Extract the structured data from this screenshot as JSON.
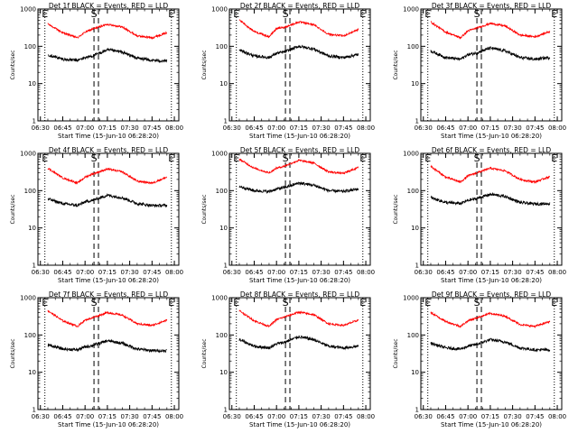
{
  "figure": {
    "xlabel": "Start Time (15-Jun-10 06:28:20)",
    "ylabel": "Counts/sec",
    "x_tick_labels": [
      "06:30",
      "06:45",
      "07:00",
      "07:15",
      "07:30",
      "07:45",
      "08:00"
    ],
    "y_tick_labels": [
      "1",
      "10",
      "100",
      "1000"
    ],
    "series_colors": {
      "events": "#000000",
      "lld": "#ff0000"
    }
  },
  "chart_data": [
    {
      "type": "line",
      "title": "Det 1f BLACK = Events, RED = LLD",
      "x_axis": "time",
      "xlim": [
        "06:28:20",
        "08:03:00"
      ],
      "ylim": [
        1,
        1000
      ],
      "y_scale": "log",
      "x": [
        "06:35",
        "06:45",
        "06:55",
        "07:00",
        "07:05",
        "07:15",
        "07:25",
        "07:35",
        "07:45",
        "07:55"
      ],
      "series": [
        {
          "values": [
            400,
            230,
            170,
            240,
            290,
            390,
            330,
            190,
            170,
            230
          ]
        },
        {
          "values": [
            60,
            45,
            42,
            50,
            55,
            80,
            70,
            48,
            42,
            40
          ]
        }
      ],
      "markers": [
        {
          "label": "E",
          "x": "06:33",
          "style": "dotted"
        },
        {
          "label": "S",
          "x": "07:06",
          "style": "dashed"
        },
        {
          "label": "",
          "x": "07:09",
          "style": "dashed"
        },
        {
          "label": "E",
          "x": "07:58",
          "style": "dotted"
        }
      ]
    },
    {
      "type": "line",
      "title": "Det 2f BLACK = Events, RED = LLD",
      "x_axis": "time",
      "xlim": [
        "06:28:20",
        "08:03:00"
      ],
      "ylim": [
        1,
        1000
      ],
      "y_scale": "log",
      "x": [
        "06:35",
        "06:45",
        "06:55",
        "07:00",
        "07:05",
        "07:15",
        "07:25",
        "07:35",
        "07:45",
        "07:55"
      ],
      "series": [
        {
          "values": [
            500,
            250,
            180,
            300,
            320,
            450,
            380,
            210,
            190,
            280
          ]
        },
        {
          "values": [
            80,
            55,
            50,
            65,
            70,
            100,
            85,
            55,
            50,
            60
          ]
        }
      ],
      "markers": [
        {
          "label": "E",
          "x": "06:33",
          "style": "dotted"
        },
        {
          "label": "S",
          "x": "07:06",
          "style": "dashed"
        },
        {
          "label": "",
          "x": "07:09",
          "style": "dashed"
        },
        {
          "label": "E",
          "x": "07:58",
          "style": "dotted"
        }
      ]
    },
    {
      "type": "line",
      "title": "Det 3f BLACK = Events, RED = LLD",
      "x_axis": "time",
      "xlim": [
        "06:28:20",
        "08:03:00"
      ],
      "ylim": [
        1,
        1000
      ],
      "y_scale": "log",
      "x": [
        "06:35",
        "06:45",
        "06:55",
        "07:00",
        "07:05",
        "07:15",
        "07:25",
        "07:35",
        "07:45",
        "07:55"
      ],
      "series": [
        {
          "values": [
            450,
            240,
            170,
            260,
            300,
            410,
            350,
            200,
            180,
            250
          ]
        },
        {
          "values": [
            75,
            50,
            45,
            60,
            65,
            90,
            75,
            50,
            45,
            50
          ]
        }
      ],
      "markers": [
        {
          "label": "E",
          "x": "06:33",
          "style": "dotted"
        },
        {
          "label": "S",
          "x": "07:06",
          "style": "dashed"
        },
        {
          "label": "",
          "x": "07:09",
          "style": "dashed"
        },
        {
          "label": "E",
          "x": "07:58",
          "style": "dotted"
        }
      ]
    },
    {
      "type": "line",
      "title": "Det 4f BLACK = Events, RED = LLD",
      "x_axis": "time",
      "xlim": [
        "06:28:20",
        "08:03:00"
      ],
      "ylim": [
        1,
        1000
      ],
      "y_scale": "log",
      "x": [
        "06:35",
        "06:45",
        "06:55",
        "07:00",
        "07:05",
        "07:15",
        "07:25",
        "07:35",
        "07:45",
        "07:55"
      ],
      "series": [
        {
          "values": [
            400,
            220,
            160,
            230,
            280,
            380,
            320,
            180,
            160,
            230
          ]
        },
        {
          "values": [
            60,
            45,
            40,
            50,
            55,
            75,
            65,
            45,
            40,
            40
          ]
        }
      ],
      "markers": [
        {
          "label": "E",
          "x": "06:33",
          "style": "dotted"
        },
        {
          "label": "S",
          "x": "07:06",
          "style": "dashed"
        },
        {
          "label": "",
          "x": "07:09",
          "style": "dashed"
        },
        {
          "label": "E",
          "x": "07:58",
          "style": "dotted"
        }
      ]
    },
    {
      "type": "line",
      "title": "Det 5f BLACK = Events, RED = LLD",
      "x_axis": "time",
      "xlim": [
        "06:28:20",
        "08:03:00"
      ],
      "ylim": [
        1,
        1000
      ],
      "y_scale": "log",
      "x": [
        "06:35",
        "06:45",
        "06:55",
        "07:00",
        "07:05",
        "07:15",
        "07:25",
        "07:35",
        "07:45",
        "07:55"
      ],
      "series": [
        {
          "values": [
            700,
            400,
            300,
            400,
            450,
            650,
            550,
            320,
            290,
            420
          ]
        },
        {
          "values": [
            130,
            100,
            95,
            110,
            120,
            160,
            140,
            100,
            95,
            110
          ]
        }
      ],
      "markers": [
        {
          "label": "E",
          "x": "06:33",
          "style": "dotted"
        },
        {
          "label": "S",
          "x": "07:06",
          "style": "dashed"
        },
        {
          "label": "",
          "x": "07:09",
          "style": "dashed"
        },
        {
          "label": "E",
          "x": "07:58",
          "style": "dotted"
        }
      ]
    },
    {
      "type": "line",
      "title": "Det 6f BLACK = Events, RED = LLD",
      "x_axis": "time",
      "xlim": [
        "06:28:20",
        "08:03:00"
      ],
      "ylim": [
        1,
        1000
      ],
      "y_scale": "log",
      "x": [
        "06:35",
        "06:45",
        "06:55",
        "07:00",
        "07:05",
        "07:15",
        "07:25",
        "07:35",
        "07:45",
        "07:55"
      ],
      "series": [
        {
          "values": [
            450,
            230,
            170,
            250,
            290,
            400,
            340,
            200,
            170,
            240
          ]
        },
        {
          "values": [
            65,
            48,
            45,
            55,
            60,
            80,
            70,
            48,
            44,
            45
          ]
        }
      ],
      "markers": [
        {
          "label": "E",
          "x": "06:33",
          "style": "dotted"
        },
        {
          "label": "S",
          "x": "07:06",
          "style": "dashed"
        },
        {
          "label": "",
          "x": "07:09",
          "style": "dashed"
        },
        {
          "label": "E",
          "x": "07:58",
          "style": "dotted"
        }
      ]
    },
    {
      "type": "line",
      "title": "Det 7f BLACK = Events, RED = LLD",
      "x_axis": "time",
      "xlim": [
        "06:28:20",
        "08:03:00"
      ],
      "ylim": [
        1,
        1000
      ],
      "y_scale": "log",
      "x": [
        "06:35",
        "06:45",
        "06:55",
        "07:00",
        "07:05",
        "07:15",
        "07:25",
        "07:35",
        "07:45",
        "07:55"
      ],
      "series": [
        {
          "values": [
            450,
            240,
            170,
            250,
            290,
            400,
            340,
            200,
            180,
            250
          ]
        },
        {
          "values": [
            55,
            42,
            40,
            48,
            52,
            70,
            60,
            42,
            38,
            38
          ]
        }
      ],
      "markers": [
        {
          "label": "E",
          "x": "06:33",
          "style": "dotted"
        },
        {
          "label": "S",
          "x": "07:06",
          "style": "dashed"
        },
        {
          "label": "",
          "x": "07:09",
          "style": "dashed"
        },
        {
          "label": "E",
          "x": "07:58",
          "style": "dotted"
        }
      ]
    },
    {
      "type": "line",
      "title": "Det 8f BLACK = Events, RED = LLD",
      "x_axis": "time",
      "xlim": [
        "06:28:20",
        "08:03:00"
      ],
      "ylim": [
        1,
        1000
      ],
      "y_scale": "log",
      "x": [
        "06:35",
        "06:45",
        "06:55",
        "07:00",
        "07:05",
        "07:15",
        "07:25",
        "07:35",
        "07:45",
        "07:55"
      ],
      "series": [
        {
          "values": [
            450,
            240,
            170,
            260,
            300,
            410,
            350,
            200,
            180,
            250
          ]
        },
        {
          "values": [
            75,
            50,
            45,
            58,
            63,
            90,
            75,
            50,
            45,
            50
          ]
        }
      ],
      "markers": [
        {
          "label": "E",
          "x": "06:33",
          "style": "dotted"
        },
        {
          "label": "S",
          "x": "07:06",
          "style": "dashed"
        },
        {
          "label": "",
          "x": "07:09",
          "style": "dashed"
        },
        {
          "label": "E",
          "x": "07:58",
          "style": "dotted"
        }
      ]
    },
    {
      "type": "line",
      "title": "Det 9f BLACK = Events, RED = LLD",
      "x_axis": "time",
      "xlim": [
        "06:28:20",
        "08:03:00"
      ],
      "ylim": [
        1,
        1000
      ],
      "y_scale": "log",
      "x": [
        "06:35",
        "06:45",
        "06:55",
        "07:00",
        "07:05",
        "07:15",
        "07:25",
        "07:35",
        "07:45",
        "07:55"
      ],
      "series": [
        {
          "values": [
            400,
            230,
            170,
            240,
            280,
            380,
            320,
            190,
            170,
            230
          ]
        },
        {
          "values": [
            60,
            45,
            42,
            50,
            55,
            75,
            65,
            45,
            40,
            40
          ]
        }
      ],
      "markers": [
        {
          "label": "E",
          "x": "06:33",
          "style": "dotted"
        },
        {
          "label": "S",
          "x": "07:06",
          "style": "dashed"
        },
        {
          "label": "",
          "x": "07:09",
          "style": "dashed"
        },
        {
          "label": "E",
          "x": "07:58",
          "style": "dotted"
        }
      ]
    }
  ]
}
